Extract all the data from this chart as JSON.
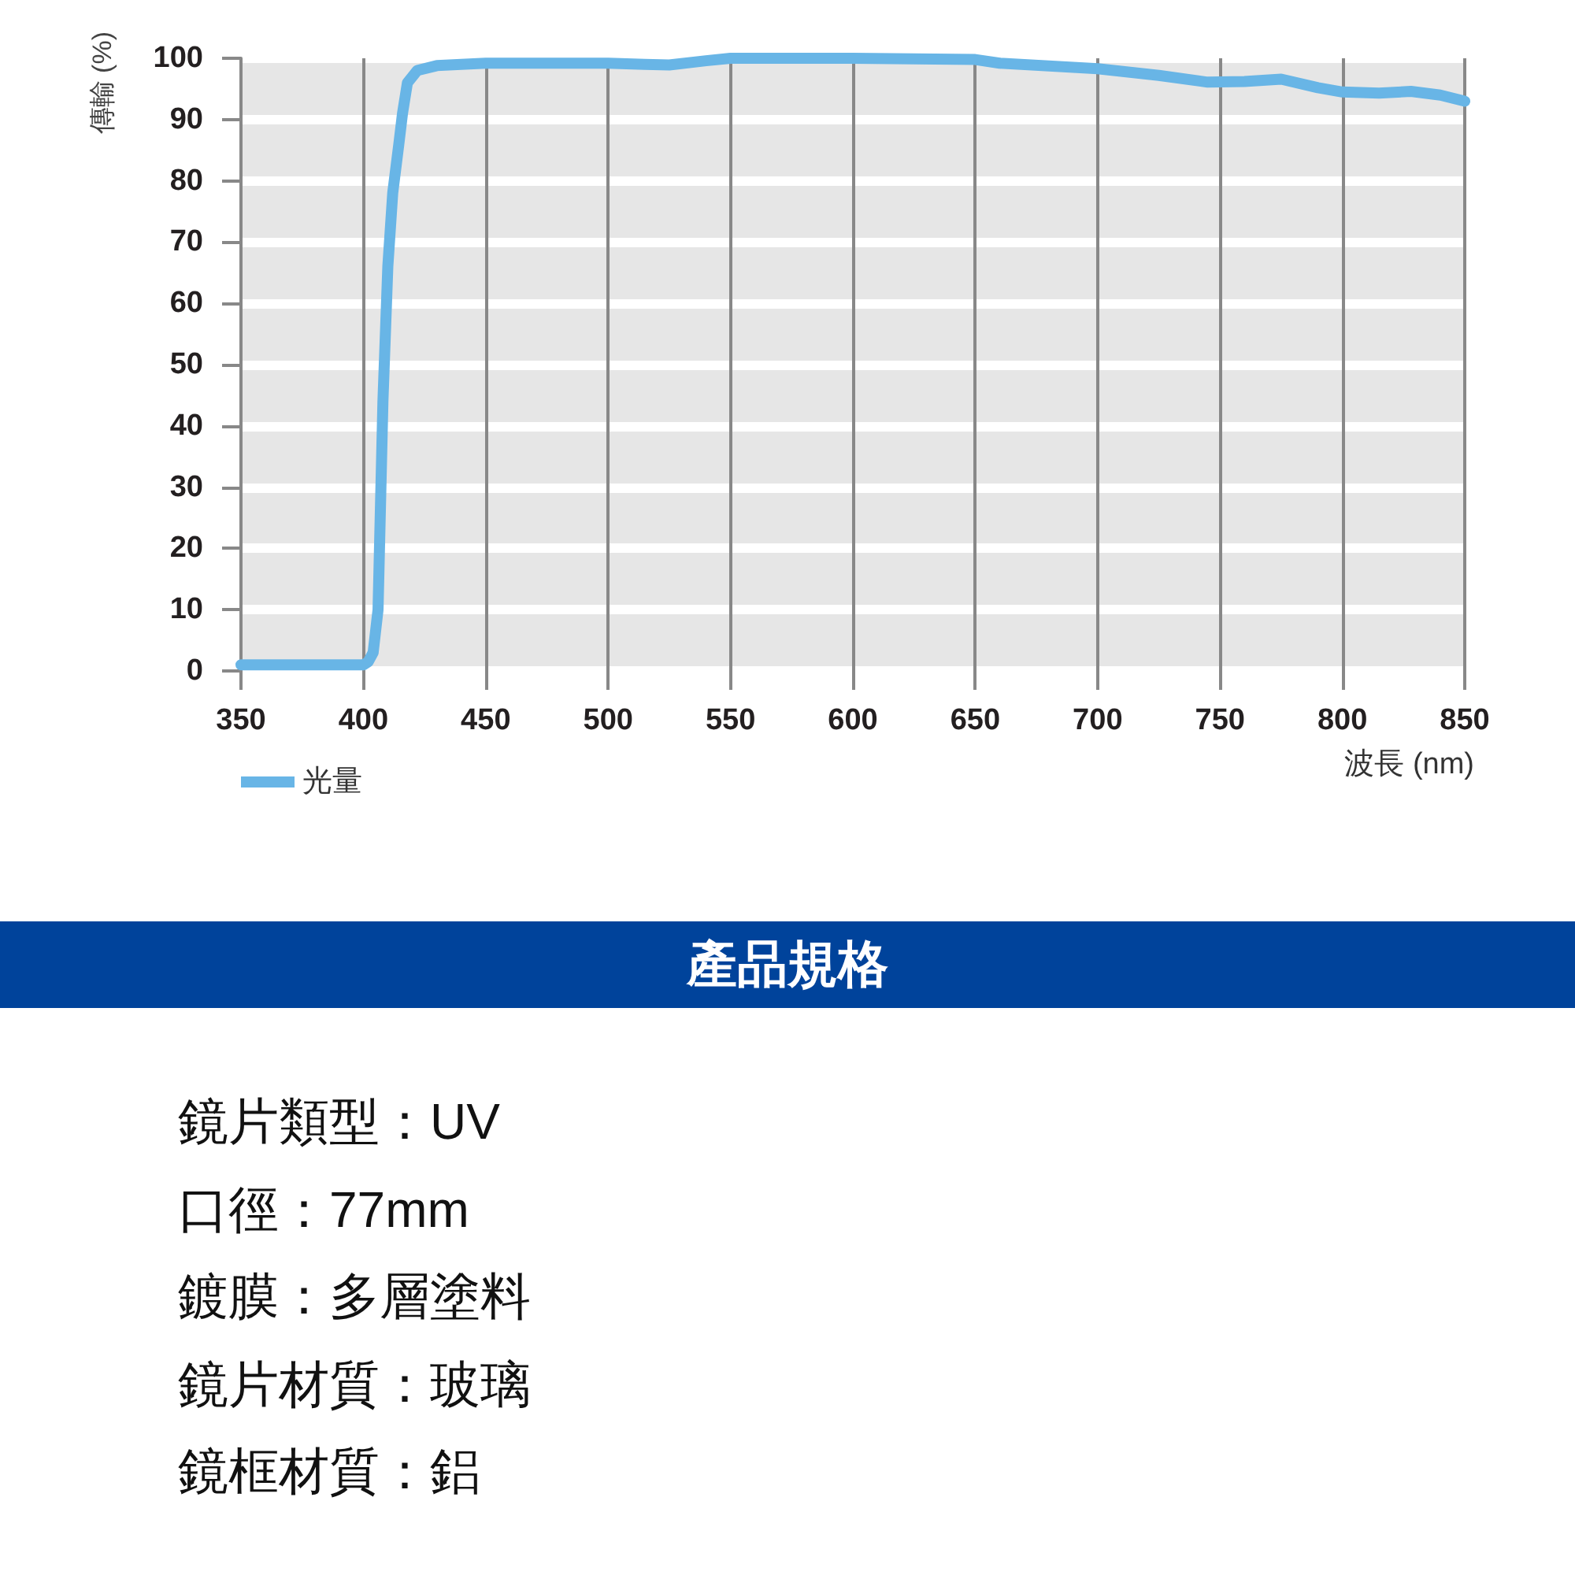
{
  "chart_data": [
    {
      "type": "line",
      "ylabel": "傳輸 (%)",
      "xlabel": "波長 (nm)",
      "series": [
        {
          "name": "光量",
          "color": "#68b5e6",
          "x": [
            350,
            400,
            402,
            404,
            406,
            408,
            410,
            412,
            414.5,
            416,
            418,
            422,
            430,
            450,
            500,
            515,
            525,
            540,
            550,
            600,
            650,
            660,
            700,
            725,
            745,
            760,
            775,
            790,
            800,
            815,
            828,
            840,
            850
          ],
          "values": [
            1,
            1,
            1.5,
            3,
            10,
            44,
            66,
            78,
            86,
            91,
            96,
            98,
            98.8,
            99.2,
            99.2,
            99,
            98.9,
            99.6,
            100,
            100,
            99.8,
            99.2,
            98.3,
            97.2,
            96.1,
            96.2,
            96.6,
            95.2,
            94.5,
            94.3,
            94.6,
            94,
            93
          ]
        }
      ],
      "xlim": [
        350,
        850
      ],
      "xticks": [
        350,
        400,
        450,
        500,
        550,
        600,
        650,
        700,
        750,
        800,
        850
      ],
      "ylim": [
        0,
        100
      ],
      "yticks": [
        0,
        10,
        20,
        30,
        40,
        50,
        60,
        70,
        80,
        90,
        100
      ],
      "grid": true,
      "legend": "bottom left",
      "marker": "none",
      "line_style": "solid"
    },
    {
      "type": "other",
      "title": "產品規格",
      "annotations": [
        "鏡片類型：UV",
        "口徑：77mm",
        "鍍膜：多層塗料",
        "鏡片材質：玻璃",
        "鏡框材質：鋁"
      ]
    }
  ]
}
